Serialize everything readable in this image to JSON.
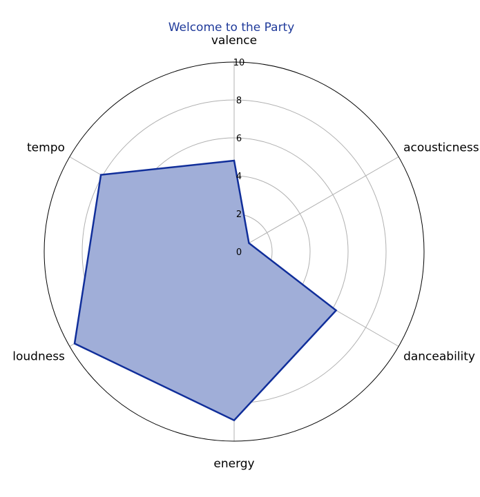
{
  "chart_data": {
    "type": "radar",
    "title": "Welcome to the Party",
    "axes": [
      "valence",
      "acousticness",
      "danceability",
      "energy",
      "loudness",
      "tempo"
    ],
    "series": [
      {
        "values": [
          4.8,
          0.9,
          6.2,
          8.9,
          9.7,
          8.1
        ]
      }
    ],
    "rlim": [
      0,
      10
    ],
    "rticks": [
      0,
      2,
      4,
      6,
      8,
      10
    ],
    "grid": true,
    "colors": {
      "title": "#1f3a9a",
      "line": "#102e9a",
      "fill": "#a0aed8",
      "grid": "#b0b0b0",
      "frame": "#000000"
    }
  }
}
